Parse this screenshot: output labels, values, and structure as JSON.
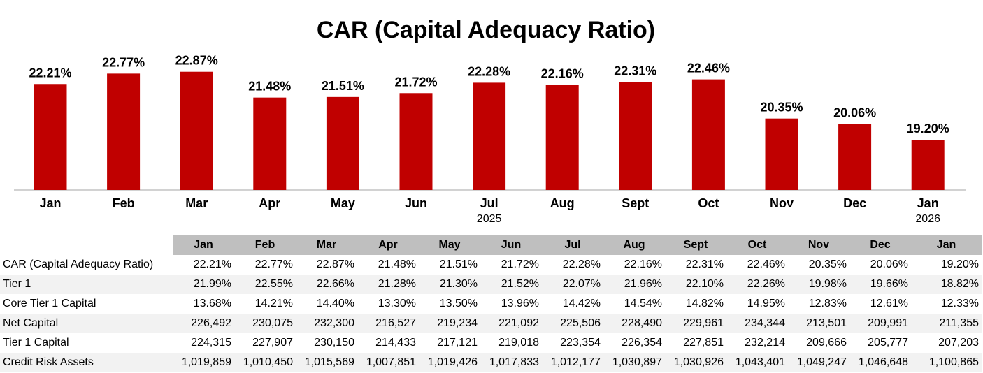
{
  "chart_data": {
    "type": "bar",
    "title": "CAR (Capital Adequacy Ratio)",
    "categories": [
      "Jan",
      "Feb",
      "Mar",
      "Apr",
      "May",
      "Jun",
      "Jul",
      "Aug",
      "Sept",
      "Oct",
      "Nov",
      "Dec",
      "Jan"
    ],
    "values": [
      22.21,
      22.77,
      22.87,
      21.48,
      21.51,
      21.72,
      22.28,
      22.16,
      22.31,
      22.46,
      20.35,
      20.06,
      19.2
    ],
    "data_labels": [
      "22.21%",
      "22.77%",
      "22.87%",
      "21.48%",
      "21.51%",
      "21.72%",
      "22.28%",
      "22.16%",
      "22.31%",
      "22.46%",
      "20.35%",
      "20.06%",
      "19.20%"
    ],
    "year_labels": [
      {
        "text": "2025",
        "category_index": 6
      },
      {
        "text": "2026",
        "category_index": 12
      }
    ],
    "ylim": [
      16.5,
      23.8
    ],
    "bar_color": "#c00000",
    "xlabel": "",
    "ylabel": ""
  },
  "table": {
    "headers": [
      "Jan",
      "Feb",
      "Mar",
      "Apr",
      "May",
      "Jun",
      "Jul",
      "Aug",
      "Sept",
      "Oct",
      "Nov",
      "Dec",
      "Jan"
    ],
    "rows": [
      {
        "label": "CAR (Capital Adequacy Ratio)",
        "values": [
          "22.21%",
          "22.77%",
          "22.87%",
          "21.48%",
          "21.51%",
          "21.72%",
          "22.28%",
          "22.16%",
          "22.31%",
          "22.46%",
          "20.35%",
          "20.06%",
          "19.20%"
        ]
      },
      {
        "label": "Tier 1",
        "values": [
          "21.99%",
          "22.55%",
          "22.66%",
          "21.28%",
          "21.30%",
          "21.52%",
          "22.07%",
          "21.96%",
          "22.10%",
          "22.26%",
          "19.98%",
          "19.66%",
          "18.82%"
        ]
      },
      {
        "label": "Core Tier 1 Capital",
        "values": [
          "13.68%",
          "14.21%",
          "14.40%",
          "13.30%",
          "13.50%",
          "13.96%",
          "14.42%",
          "14.54%",
          "14.82%",
          "14.95%",
          "12.83%",
          "12.61%",
          "12.33%"
        ]
      },
      {
        "label": "Net Capital",
        "values": [
          "226,492",
          "230,075",
          "232,300",
          "216,527",
          "219,234",
          "221,092",
          "225,506",
          "228,490",
          "229,961",
          "234,344",
          "213,501",
          "209,991",
          "211,355"
        ]
      },
      {
        "label": "Tier 1 Capital",
        "values": [
          "224,315",
          "227,907",
          "230,150",
          "214,433",
          "217,121",
          "219,018",
          "223,354",
          "226,354",
          "227,851",
          "232,214",
          "209,666",
          "205,777",
          "207,203"
        ]
      },
      {
        "label": "Credit Risk Assets",
        "values": [
          "1,019,859",
          "1,010,450",
          "1,015,569",
          "1,007,851",
          "1,019,426",
          "1,017,833",
          "1,012,177",
          "1,030,897",
          "1,030,926",
          "1,043,401",
          "1,049,247",
          "1,046,648",
          "1,100,865"
        ]
      }
    ]
  }
}
